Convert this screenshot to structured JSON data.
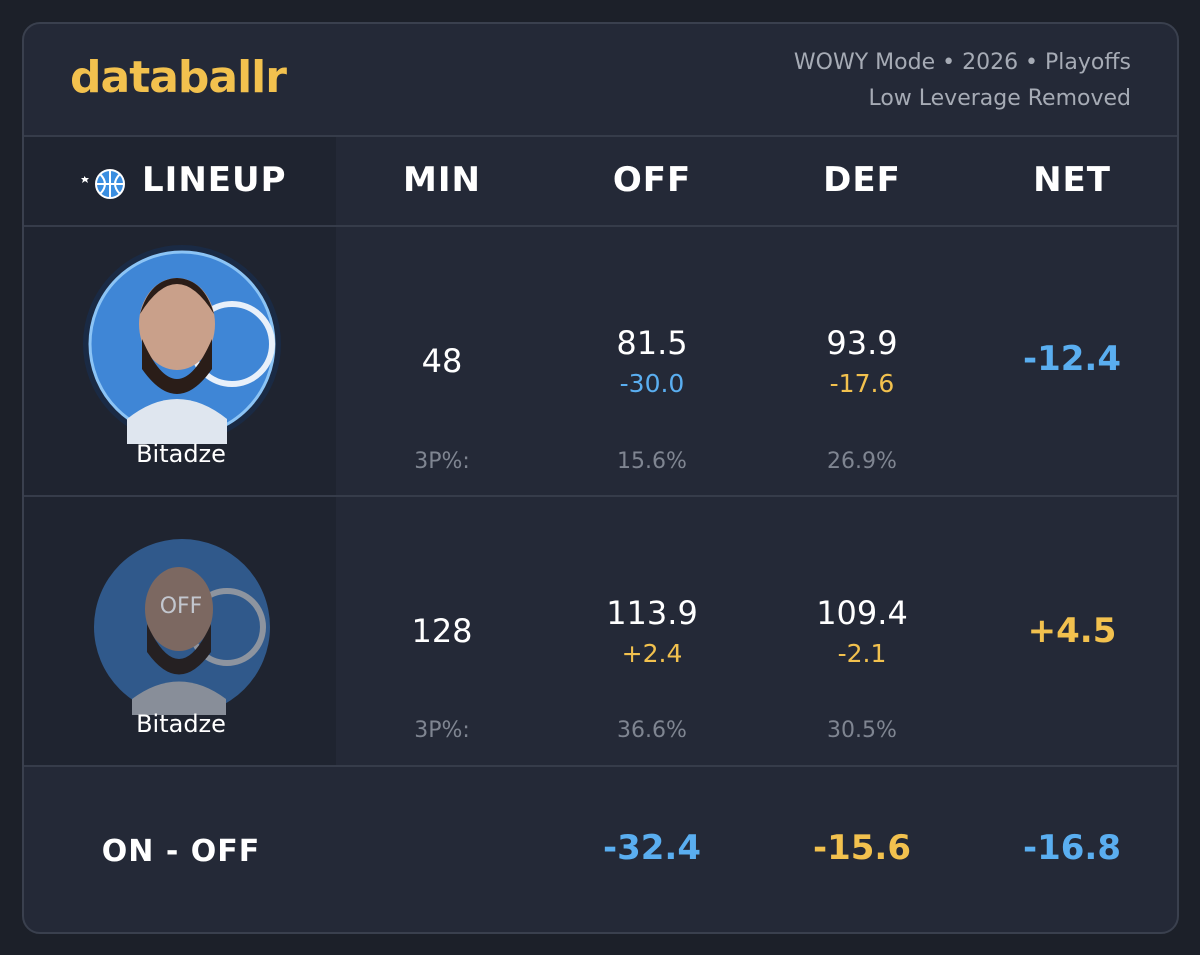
{
  "header": {
    "brand": "databallr",
    "subtitle": [
      "WOWY Mode • 2026 • Playoffs",
      "Low Leverage Removed"
    ]
  },
  "columns": [
    "LINEUP",
    "MIN",
    "OFF",
    "DEF",
    "NET"
  ],
  "rows": [
    {
      "player": "Bitadze",
      "min": "48",
      "off": "81.5",
      "off_diff": "-30.0",
      "def": "93.9",
      "def_diff": "-17.6",
      "net": "-12.4",
      "tp_label": "3P%:",
      "off_3p": "15.6%",
      "def_3p": "26.9%"
    },
    {
      "player": "Bitadze",
      "badge": "OFF",
      "min": "128",
      "off": "113.9",
      "off_diff": "+2.4",
      "def": "109.4",
      "def_diff": "-2.1",
      "net": "+4.5",
      "tp_label": "3P%:",
      "off_3p": "36.6%",
      "def_3p": "30.5%"
    }
  ],
  "footer": {
    "label": "ON - OFF",
    "off": "-32.4",
    "def": "-15.6",
    "net": "-16.8"
  }
}
